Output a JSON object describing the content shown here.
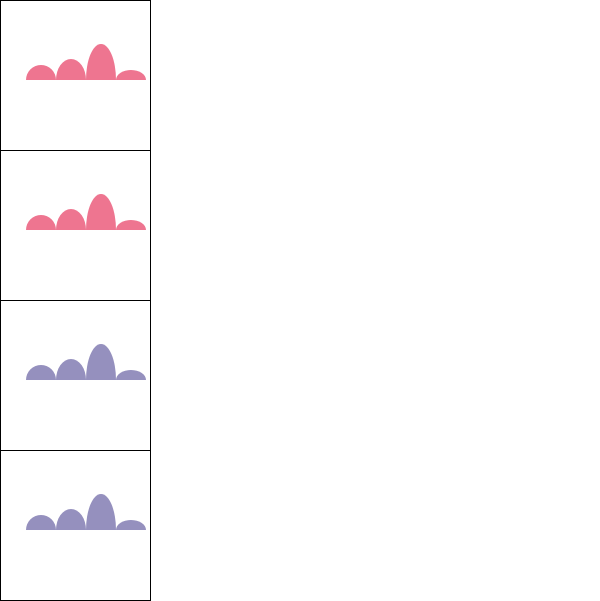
{
  "chart_data": [
    {
      "type": "area",
      "shape": "semi-ellipse bumps",
      "values": [
        15,
        21,
        36,
        10
      ],
      "color": "#EE7590"
    },
    {
      "type": "area",
      "shape": "semi-ellipse bumps",
      "values": [
        15,
        21,
        36,
        10
      ],
      "color": "#EE7590"
    },
    {
      "type": "area",
      "shape": "semi-ellipse bumps",
      "values": [
        15,
        21,
        36,
        10
      ],
      "color": "#9590BE"
    },
    {
      "type": "area",
      "shape": "semi-ellipse bumps",
      "values": [
        15,
        21,
        36,
        10
      ],
      "color": "#9590BE"
    }
  ]
}
